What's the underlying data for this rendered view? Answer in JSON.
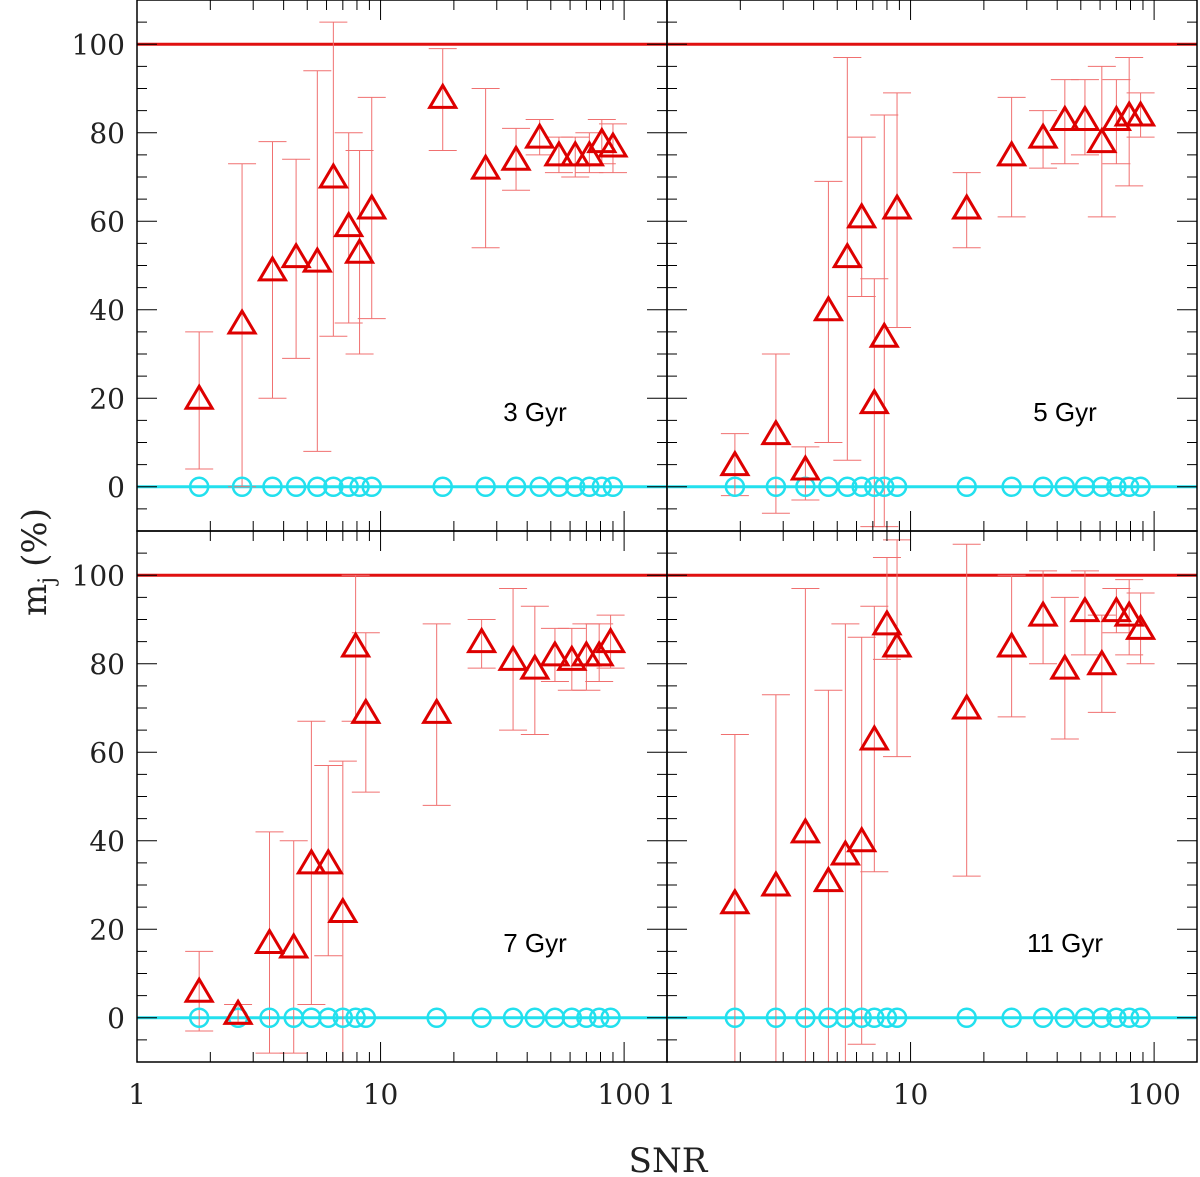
{
  "chart_data": {
    "type": "scatter",
    "x_scale": "log",
    "xlim": [
      1,
      150
    ],
    "ylim": [
      -10,
      110
    ],
    "xlabel": "SNR",
    "ylabel": "m",
    "ylabel_sub": "j",
    "ylabel_unit": "(%)",
    "x_tick_labels": [
      "1",
      "10",
      "100"
    ],
    "y_tick_labels": [
      "0",
      "20",
      "40",
      "60",
      "80",
      "100"
    ],
    "reference_lines": [
      {
        "y": 100,
        "color": "#e01010"
      },
      {
        "y": 0,
        "color": "#22e0ee"
      }
    ],
    "colors": {
      "triangles": "#dd0000",
      "errorbars": "#f07070",
      "circles": "#22e0ee",
      "frame": "#000000"
    },
    "panels": [
      {
        "label": "3 Gyr",
        "triangles": [
          {
            "x": 1.8,
            "y": 20,
            "lo": 4,
            "hi": 35
          },
          {
            "x": 2.7,
            "y": 37,
            "lo": 0,
            "hi": 73
          },
          {
            "x": 3.6,
            "y": 49,
            "lo": 20,
            "hi": 78
          },
          {
            "x": 4.5,
            "y": 52,
            "lo": 29,
            "hi": 74
          },
          {
            "x": 5.5,
            "y": 51,
            "lo": 8,
            "hi": 94
          },
          {
            "x": 6.4,
            "y": 70,
            "lo": 34,
            "hi": 105
          },
          {
            "x": 7.4,
            "y": 59,
            "lo": 37,
            "hi": 80
          },
          {
            "x": 8.2,
            "y": 53,
            "lo": 30,
            "hi": 76
          },
          {
            "x": 9.2,
            "y": 63,
            "lo": 38,
            "hi": 88
          },
          {
            "x": 18,
            "y": 88,
            "lo": 76,
            "hi": 99
          },
          {
            "x": 27,
            "y": 72,
            "lo": 54,
            "hi": 90
          },
          {
            "x": 36,
            "y": 74,
            "lo": 67,
            "hi": 81
          },
          {
            "x": 45,
            "y": 79,
            "lo": 75,
            "hi": 83
          },
          {
            "x": 54,
            "y": 75,
            "lo": 71,
            "hi": 79
          },
          {
            "x": 63,
            "y": 75,
            "lo": 70,
            "hi": 79
          },
          {
            "x": 72,
            "y": 75,
            "lo": 71,
            "hi": 80
          },
          {
            "x": 81,
            "y": 78,
            "lo": 73,
            "hi": 83
          },
          {
            "x": 90,
            "y": 77,
            "lo": 71,
            "hi": 82
          }
        ],
        "circles_x": [
          1.8,
          2.7,
          3.6,
          4.5,
          5.5,
          6.4,
          7.4,
          8.2,
          9.2,
          18,
          27,
          36,
          45,
          54,
          63,
          72,
          81,
          90
        ]
      },
      {
        "label": "5 Gyr",
        "triangles": [
          {
            "x": 1.9,
            "y": 5,
            "lo": -2,
            "hi": 12
          },
          {
            "x": 2.8,
            "y": 12,
            "lo": -6,
            "hi": 30
          },
          {
            "x": 3.7,
            "y": 4,
            "lo": -3,
            "hi": 9
          },
          {
            "x": 4.6,
            "y": 40,
            "lo": 10,
            "hi": 69
          },
          {
            "x": 5.5,
            "y": 52,
            "lo": 6,
            "hi": 97
          },
          {
            "x": 6.3,
            "y": 61,
            "lo": 43,
            "hi": 79
          },
          {
            "x": 7.1,
            "y": 19,
            "lo": -9,
            "hi": 47
          },
          {
            "x": 7.8,
            "y": 34,
            "lo": -9,
            "hi": 84
          },
          {
            "x": 8.8,
            "y": 63,
            "lo": 36,
            "hi": 89
          },
          {
            "x": 17,
            "y": 63,
            "lo": 54,
            "hi": 71
          },
          {
            "x": 26,
            "y": 75,
            "lo": 61,
            "hi": 88
          },
          {
            "x": 35,
            "y": 79,
            "lo": 72,
            "hi": 85
          },
          {
            "x": 43,
            "y": 83,
            "lo": 73,
            "hi": 92
          },
          {
            "x": 52,
            "y": 83,
            "lo": 75,
            "hi": 92
          },
          {
            "x": 61,
            "y": 78,
            "lo": 61,
            "hi": 95
          },
          {
            "x": 70,
            "y": 83,
            "lo": 73,
            "hi": 92
          },
          {
            "x": 79,
            "y": 84,
            "lo": 68,
            "hi": 97
          },
          {
            "x": 88,
            "y": 84,
            "lo": 79,
            "hi": 89
          }
        ],
        "circles_x": [
          1.9,
          2.8,
          3.7,
          4.6,
          5.5,
          6.3,
          7.1,
          7.8,
          8.8,
          17,
          26,
          35,
          43,
          52,
          61,
          70,
          79,
          88
        ]
      },
      {
        "label": "7 Gyr",
        "triangles": [
          {
            "x": 1.8,
            "y": 6,
            "lo": -3,
            "hi": 15
          },
          {
            "x": 2.6,
            "y": 1,
            "lo": -1,
            "hi": 3
          },
          {
            "x": 3.5,
            "y": 17,
            "lo": -8,
            "hi": 42
          },
          {
            "x": 4.4,
            "y": 16,
            "lo": -8,
            "hi": 40
          },
          {
            "x": 5.2,
            "y": 35,
            "lo": 3,
            "hi": 67
          },
          {
            "x": 6.1,
            "y": 35,
            "lo": 14,
            "hi": 57
          },
          {
            "x": 7.0,
            "y": 24,
            "lo": -10,
            "hi": 58
          },
          {
            "x": 7.9,
            "y": 84,
            "lo": 67,
            "hi": 100
          },
          {
            "x": 8.7,
            "y": 69,
            "lo": 51,
            "hi": 87
          },
          {
            "x": 17,
            "y": 69,
            "lo": 48,
            "hi": 89
          },
          {
            "x": 26,
            "y": 85,
            "lo": 79,
            "hi": 90
          },
          {
            "x": 35,
            "y": 81,
            "lo": 65,
            "hi": 97
          },
          {
            "x": 43,
            "y": 79,
            "lo": 64,
            "hi": 93
          },
          {
            "x": 52,
            "y": 82,
            "lo": 76,
            "hi": 88
          },
          {
            "x": 61,
            "y": 81,
            "lo": 74,
            "hi": 88
          },
          {
            "x": 70,
            "y": 82,
            "lo": 74,
            "hi": 89
          },
          {
            "x": 79,
            "y": 82,
            "lo": 76,
            "hi": 89
          },
          {
            "x": 88,
            "y": 85,
            "lo": 79,
            "hi": 91
          }
        ],
        "circles_x": [
          1.8,
          2.6,
          3.5,
          4.4,
          5.2,
          6.1,
          7.0,
          7.9,
          8.7,
          17,
          26,
          35,
          43,
          52,
          61,
          70,
          79,
          88
        ]
      },
      {
        "label": "11 Gyr",
        "triangles": [
          {
            "x": 1.9,
            "y": 26,
            "lo": -10,
            "hi": 64
          },
          {
            "x": 2.8,
            "y": 30,
            "lo": -10,
            "hi": 73
          },
          {
            "x": 3.7,
            "y": 42,
            "lo": -10,
            "hi": 97
          },
          {
            "x": 4.6,
            "y": 31,
            "lo": -10,
            "hi": 74
          },
          {
            "x": 5.4,
            "y": 37,
            "lo": -10,
            "hi": 89
          },
          {
            "x": 6.3,
            "y": 40,
            "lo": -6,
            "hi": 86
          },
          {
            "x": 7.1,
            "y": 63,
            "lo": 33,
            "hi": 93
          },
          {
            "x": 8.0,
            "y": 89,
            "lo": 81,
            "hi": 104
          },
          {
            "x": 8.8,
            "y": 84,
            "lo": 59,
            "hi": 108
          },
          {
            "x": 17,
            "y": 70,
            "lo": 32,
            "hi": 107
          },
          {
            "x": 26,
            "y": 84,
            "lo": 68,
            "hi": 100
          },
          {
            "x": 35,
            "y": 91,
            "lo": 80,
            "hi": 101
          },
          {
            "x": 43,
            "y": 79,
            "lo": 63,
            "hi": 95
          },
          {
            "x": 52,
            "y": 92,
            "lo": 82,
            "hi": 101
          },
          {
            "x": 61,
            "y": 80,
            "lo": 69,
            "hi": 91
          },
          {
            "x": 70,
            "y": 92,
            "lo": 87,
            "hi": 97
          },
          {
            "x": 79,
            "y": 91,
            "lo": 82,
            "hi": 99
          },
          {
            "x": 88,
            "y": 88,
            "lo": 80,
            "hi": 96
          }
        ],
        "circles_x": [
          1.9,
          2.8,
          3.7,
          4.6,
          5.4,
          6.3,
          7.1,
          8.0,
          8.8,
          17,
          26,
          35,
          43,
          52,
          61,
          70,
          79,
          88
        ]
      }
    ]
  }
}
